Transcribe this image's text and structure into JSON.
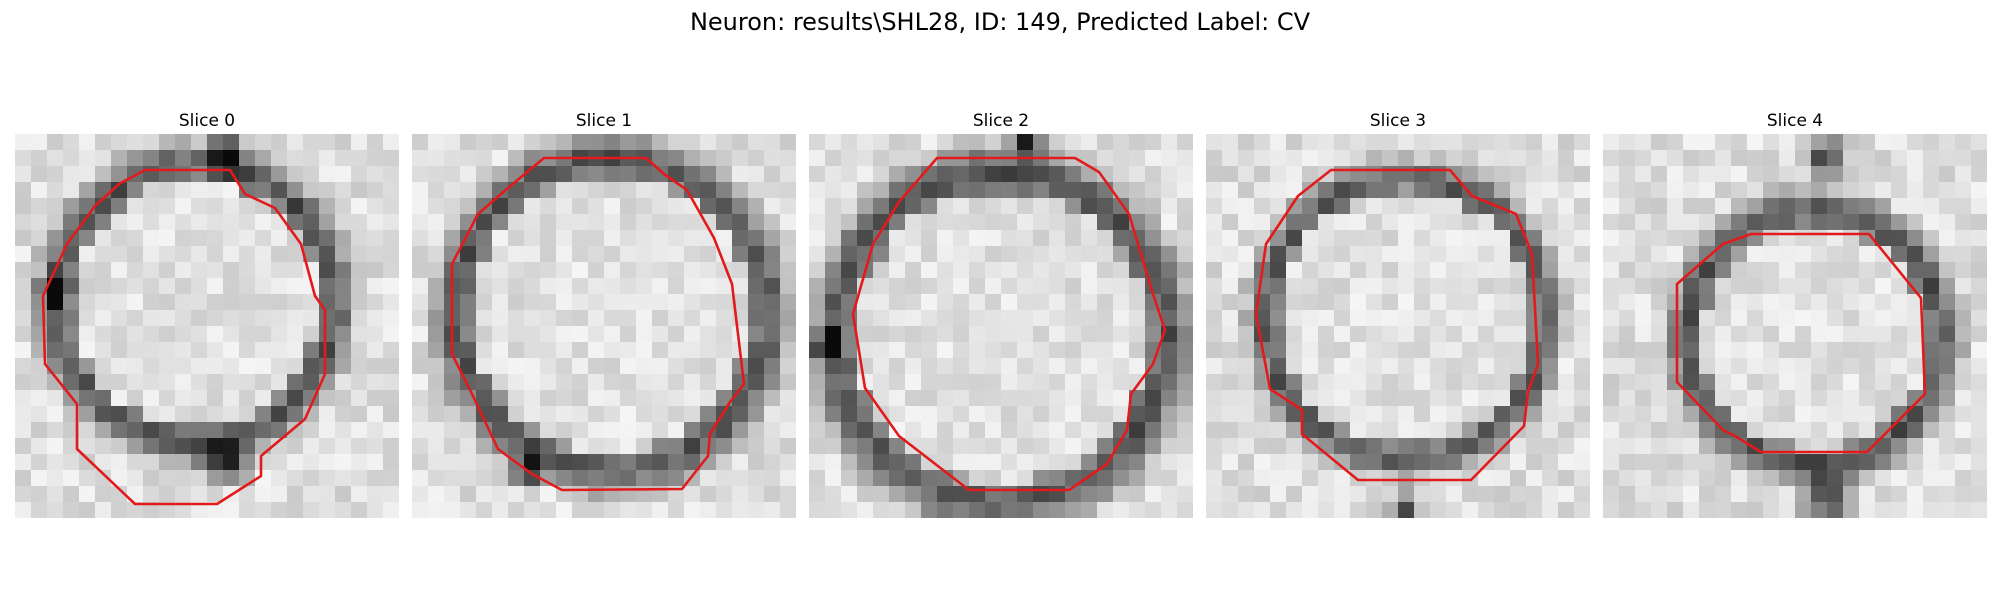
{
  "figure": {
    "title": "Neuron: results\\SHL28, ID: 149, Predicted Label: CV",
    "contour_color": "#e31a1c",
    "slices": [
      {
        "title": "Slice 0"
      },
      {
        "title": "Slice 1"
      },
      {
        "title": "Slice 2"
      },
      {
        "title": "Slice 3"
      },
      {
        "title": "Slice 4"
      }
    ]
  }
}
